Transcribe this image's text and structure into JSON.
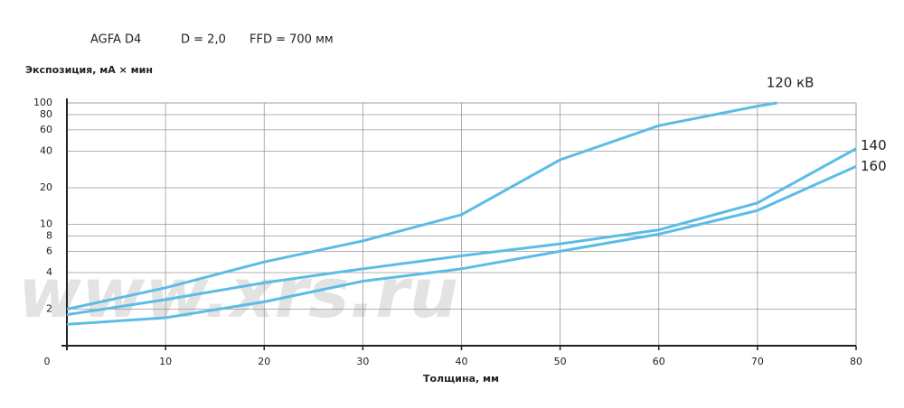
{
  "chart_data": {
    "type": "line",
    "header": [
      "AGFA D4",
      "D = 2,0",
      "FFD = 700 мм"
    ],
    "y_label": "Экспозиция, мА × мин",
    "x_label": "Толщина, мм",
    "watermark": "www.xrs.ru",
    "log_y": true,
    "grid": true,
    "xlim": [
      0,
      80
    ],
    "xticks": [
      0,
      10,
      20,
      30,
      40,
      50,
      60,
      70,
      80
    ],
    "ylim": [
      1,
      100
    ],
    "yticks": [
      2,
      4,
      6,
      8,
      10,
      20,
      40,
      60,
      80,
      100
    ],
    "series": [
      {
        "name": "120 кВ",
        "color": "#5bbce6",
        "x": [
          0,
          10,
          20,
          30,
          40,
          50,
          60,
          70,
          72
        ],
        "values": [
          2,
          3,
          4.9,
          7.3,
          12,
          34,
          65,
          94,
          100
        ]
      },
      {
        "name": "140",
        "color": "#5bbce6",
        "x": [
          0,
          10,
          20,
          30,
          40,
          50,
          60,
          70,
          80
        ],
        "values": [
          1.8,
          2.4,
          3.3,
          4.3,
          5.5,
          6.9,
          9,
          15,
          42
        ]
      },
      {
        "name": "160",
        "color": "#5bbce6",
        "x": [
          0,
          10,
          20,
          30,
          40,
          50,
          60,
          70,
          80
        ],
        "values": [
          1.5,
          1.7,
          2.3,
          3.4,
          4.3,
          6,
          8.3,
          13,
          30
        ]
      }
    ]
  }
}
